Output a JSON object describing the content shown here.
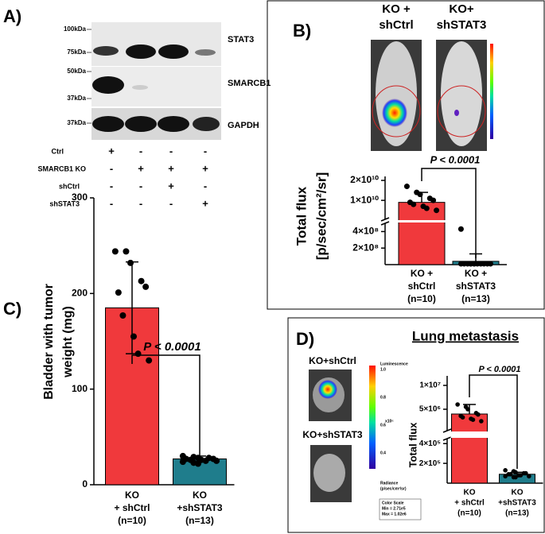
{
  "panel_a": {
    "label": "A)",
    "markers": [
      "100kDa",
      "75kDa",
      "50kDa",
      "37kDa",
      "37kDa"
    ],
    "proteins": [
      "STAT3",
      "SMARCB1",
      "GAPDH"
    ],
    "conditions": [
      {
        "name": "Ctrl",
        "signs": [
          "+",
          "-",
          "-",
          "-"
        ]
      },
      {
        "name": "SMARCB1 KO",
        "signs": [
          "-",
          "+",
          "+",
          "+"
        ]
      },
      {
        "name": "shCtrl",
        "signs": [
          "-",
          "-",
          "+",
          "-"
        ]
      },
      {
        "name": "shSTAT3",
        "signs": [
          "-",
          "-",
          "-",
          "+"
        ]
      }
    ]
  },
  "panel_b": {
    "label": "B)",
    "image_headers": [
      [
        "KO +",
        "shCtrl"
      ],
      [
        "KO+",
        "shSTAT3"
      ]
    ],
    "chart": {
      "type": "broken-bar",
      "ylabel_lines": [
        "Total flux",
        "[p/sec/cm²/sr]"
      ],
      "annotation": "P < 0.0001",
      "categories": [
        [
          "KO +",
          "shCtrl",
          "(n=10)"
        ],
        [
          "KO +",
          "shSTAT3",
          "(n=13)"
        ]
      ],
      "values": [
        9000000000,
        40000000
      ],
      "errors": [
        5000000000,
        90000000
      ],
      "points": [
        [
          17000000000,
          14000000000,
          13000000000,
          11000000000,
          10000000000,
          9000000000,
          8000000000,
          7000000000,
          6000000000,
          5000000000
        ],
        [
          430000000,
          10000000,
          10000000,
          10000000,
          10000000,
          10000000,
          10000000,
          10000000,
          10000000,
          10000000,
          10000000,
          10000000,
          10000000
        ]
      ],
      "colors": [
        "#f0393c",
        "#1f7d8c"
      ],
      "ylim_lower": [
        0,
        500000000
      ],
      "ylim_upper": [
        500000000,
        22000000000
      ],
      "yticks": [
        {
          "value": 200000000,
          "label": "2×10⁸"
        },
        {
          "value": 400000000,
          "label": "4×10⁸"
        },
        {
          "value": 10000000000,
          "label": "1×10¹⁰"
        },
        {
          "value": 20000000000,
          "label": "2×10¹⁰"
        }
      ]
    }
  },
  "panel_c": {
    "label": "C)",
    "chart": {
      "type": "bar",
      "ylabel_lines": [
        "Bladder with tumor",
        "weight (mg)"
      ],
      "annotation": "P < 0.0001",
      "categories": [
        [
          "KO",
          "+ shCtrl",
          "(n=10)"
        ],
        [
          "KO",
          "+shSTAT3",
          "(n=13)"
        ]
      ],
      "values": [
        185,
        27
      ],
      "errors": [
        48,
        3
      ],
      "points": [
        [
          244,
          244,
          232,
          213,
          207,
          201,
          177,
          155,
          137,
          130
        ],
        [
          30,
          29,
          28,
          28,
          27,
          27,
          26,
          26,
          25,
          25,
          24,
          23,
          22
        ]
      ],
      "colors": [
        "#f0393c",
        "#1f7d8c"
      ],
      "ylim": [
        0,
        300
      ],
      "yticks": [
        0,
        100,
        200,
        300
      ]
    }
  },
  "panel_d": {
    "label": "D)",
    "title": "Lung metastasis",
    "image_labels": [
      "KO+shCtrl",
      "KO+shSTAT3"
    ],
    "colorbar_title": "Luminescence",
    "colorbar_labels": [
      "1.0",
      "0.8",
      "0.6",
      "0.4"
    ],
    "colorbar_unit": "x10⁶",
    "radiance_lines": [
      "Radiance",
      "(p/sec/cm²/sr)"
    ],
    "color_scale_lines": [
      "Color Scale",
      "Min = 2.71e5",
      "Max = 1.02e6"
    ],
    "chart": {
      "type": "broken-bar",
      "ylabel_lines": [
        "Total flux"
      ],
      "annotation": "P < 0.0001",
      "categories": [
        [
          "KO",
          "+ shCtrl",
          "(n=10)"
        ],
        [
          "KO",
          "+shSTAT3",
          "(n=13)"
        ]
      ],
      "values": [
        4000000,
        90000
      ],
      "errors": [
        2000000,
        20000
      ],
      "points": [
        [
          6000000,
          5500000,
          5000000,
          4200000,
          3900000,
          3600000,
          3300000,
          3000000,
          2800000,
          2500000
        ],
        [
          130000,
          120000,
          110000,
          100000,
          100000,
          90000,
          90000,
          80000,
          80000,
          70000,
          70000,
          60000,
          60000
        ]
      ],
      "colors": [
        "#f0393c",
        "#1f7d8c"
      ],
      "ylim_lower": [
        0,
        450000
      ],
      "ylim_upper": [
        500000,
        12000000
      ],
      "yticks": [
        {
          "value": 200000,
          "label": "2×10⁵"
        },
        {
          "value": 400000,
          "label": "4×10⁵"
        },
        {
          "value": 5000000,
          "label": "5×10⁶"
        },
        {
          "value": 10000000,
          "label": "1×10⁷"
        }
      ]
    }
  }
}
